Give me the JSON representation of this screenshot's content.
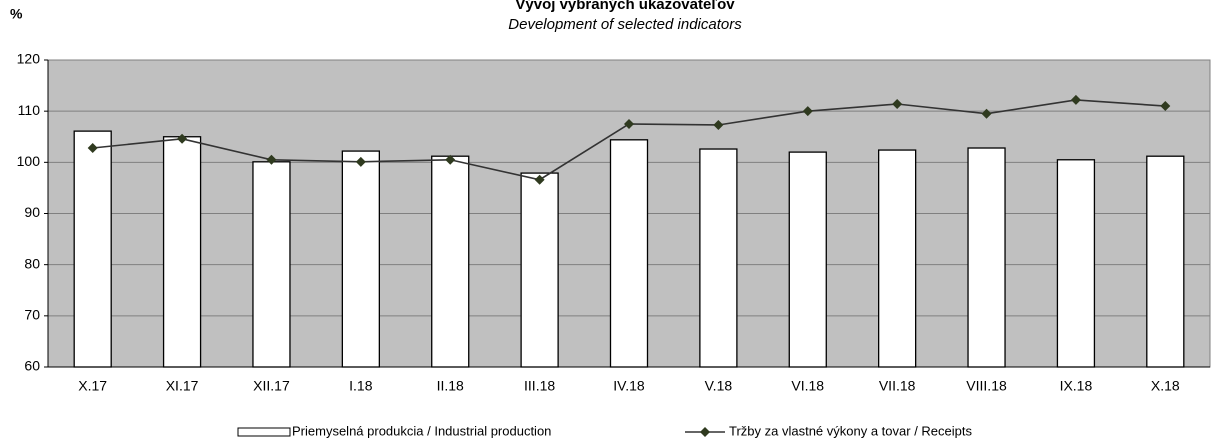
{
  "chart_data": {
    "type": "bar",
    "title": "Vývoj vybraných ukazovateľov",
    "subtitle": "Development of selected indicators",
    "y_label": "%",
    "categories": [
      "X.17",
      "XI.17",
      "XII.17",
      "I.18",
      "II.18",
      "III.18",
      "IV.18",
      "V.18",
      "VI.18",
      "VII.18",
      "VIII.18",
      "IX.18",
      "X.18"
    ],
    "series": [
      {
        "name": "Priemyselná produkcia / Industrial production",
        "type": "bar",
        "color": "#ffffff",
        "values": [
          106.1,
          105,
          100.1,
          102.2,
          101.2,
          97.9,
          104.4,
          102.6,
          102,
          102.4,
          102.8,
          100.5,
          101.2
        ]
      },
      {
        "name": "Tržby za vlastné výkony a tovar / Receipts",
        "type": "line",
        "color": "#2f3a1f",
        "values": [
          102.8,
          104.6,
          100.5,
          100.1,
          100.5,
          96.6,
          107.5,
          107.3,
          110,
          111.4,
          109.5,
          112.2,
          111
        ]
      }
    ],
    "ylim": [
      60,
      120
    ],
    "yticks": [
      60,
      70,
      80,
      90,
      100,
      110,
      120
    ],
    "grid": true
  }
}
